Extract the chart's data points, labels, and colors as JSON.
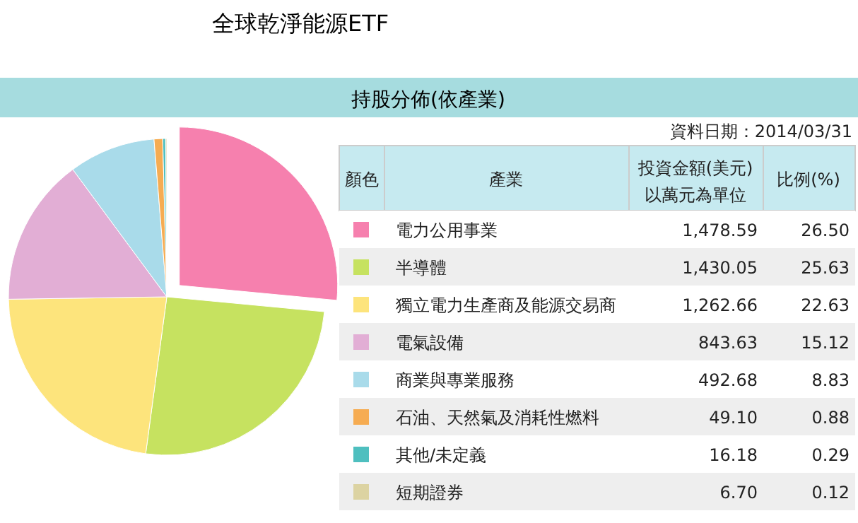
{
  "chart_data": [
    {
      "type": "pie",
      "title": "全球乾淨能源ETF",
      "subtitle": "持股分佈(依產業)",
      "legend_title": "產業",
      "annotations": [
        "資料日期：2014/03/31",
        "顏色",
        "比例(%)"
      ],
      "categories": [
        "電力公用事業",
        "半導體",
        "獨立電力生產商及能源交易商",
        "電氣設備",
        "商業與專業服務",
        "石油、天然氣及消耗性燃料",
        "其他/未定義",
        "短期證券"
      ],
      "colors": [
        "#f680ae",
        "#c6e260",
        "#fde47c",
        "#e2aed5",
        "#a9dbea",
        "#f6ac52",
        "#4ebfbf",
        "#dcd3a2"
      ],
      "values": [
        26.5,
        25.63,
        22.63,
        15.12,
        8.83,
        0.88,
        0.29,
        0.12
      ],
      "value_labels": [
        "26.50",
        "25.63",
        "22.63",
        "15.12",
        "8.83",
        "0.88",
        "0.29",
        "0.12"
      ],
      "legend": "right"
    },
    {
      "type": "other",
      "title": "投資金額(美元)以萬元為單位",
      "values": [
        1478.59,
        1430.05,
        1262.66,
        843.63,
        492.68,
        49.1,
        16.18,
        6.7
      ],
      "value_labels": [
        "1,478.59",
        "1,430.05",
        "1,262.66",
        "843.63",
        "492.68",
        "49.10",
        "16.18",
        "6.70"
      ]
    }
  ]
}
